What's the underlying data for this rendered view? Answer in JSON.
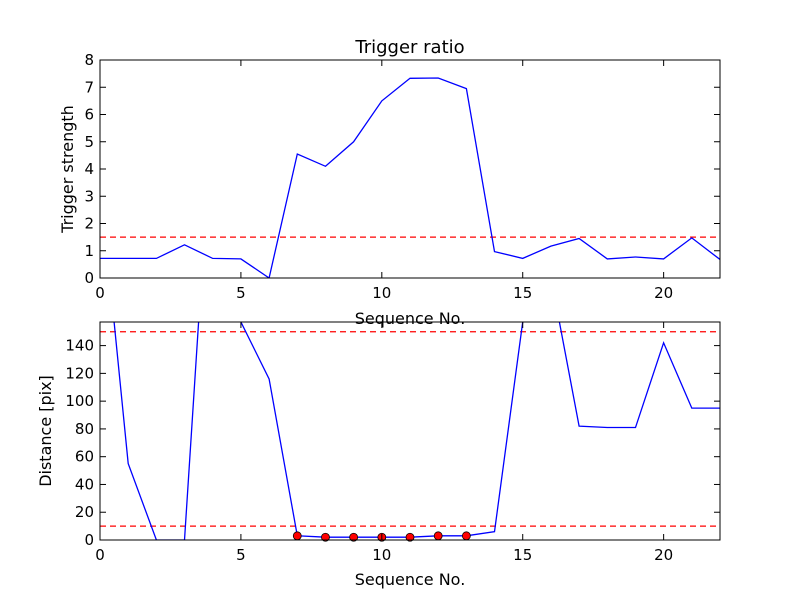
{
  "chart_data": [
    {
      "type": "line",
      "title": "Trigger ratio",
      "xlabel": "Sequence No.",
      "ylabel": "Trigger strength",
      "xlim": [
        0,
        22
      ],
      "ylim": [
        0,
        8
      ],
      "xticks": [
        0,
        5,
        10,
        15,
        20
      ],
      "yticks": [
        0,
        1,
        2,
        3,
        4,
        5,
        6,
        7,
        8
      ],
      "grid": false,
      "series": [
        {
          "color": "#0000ff",
          "x": [
            0,
            1,
            2,
            3,
            4,
            5,
            6,
            7,
            8,
            9,
            10,
            11,
            12,
            13,
            14,
            15,
            16,
            17,
            18,
            19,
            20,
            21,
            22
          ],
          "y": [
            0.72,
            0.72,
            0.72,
            1.22,
            0.72,
            0.7,
            0.0,
            4.55,
            4.1,
            5.0,
            6.5,
            7.33,
            7.34,
            6.95,
            0.97,
            0.72,
            1.17,
            1.45,
            0.7,
            0.77,
            0.7,
            1.47,
            0.68
          ]
        }
      ],
      "hlines": [
        {
          "y": 1.5,
          "color": "#ff0000",
          "style": "dashed"
        }
      ]
    },
    {
      "type": "line",
      "title": "",
      "xlabel": "Sequence No.",
      "ylabel": "Distance [pix]",
      "xlim": [
        0,
        22
      ],
      "ylim": [
        0,
        157
      ],
      "xticks": [
        0,
        5,
        10,
        15,
        20
      ],
      "yticks": [
        0,
        20,
        40,
        60,
        80,
        100,
        120,
        140
      ],
      "grid": false,
      "series": [
        {
          "color": "#0000ff",
          "x": [
            0.5,
            1,
            2,
            3,
            3.5
          ],
          "y": [
            157,
            55,
            0,
            0,
            157
          ]
        },
        {
          "color": "#0000ff",
          "x": [
            5,
            6,
            7,
            8,
            9,
            10,
            11,
            12,
            13,
            14,
            15
          ],
          "y": [
            157,
            116,
            3,
            2,
            2,
            2,
            2,
            3,
            3,
            6,
            157
          ]
        },
        {
          "color": "#0000ff",
          "x": [
            16.3,
            17,
            18,
            19,
            20,
            21,
            22
          ],
          "y": [
            157,
            82,
            81,
            81,
            142,
            95,
            95
          ]
        }
      ],
      "points": {
        "color": "#ff0000",
        "x": [
          7,
          8,
          9,
          10,
          11,
          12,
          13
        ],
        "y": [
          3,
          2,
          2,
          2,
          2,
          3,
          3
        ]
      },
      "hlines": [
        {
          "y": 150,
          "color": "#ff0000",
          "style": "dashed"
        },
        {
          "y": 10,
          "color": "#ff0000",
          "style": "dashed"
        }
      ]
    }
  ]
}
